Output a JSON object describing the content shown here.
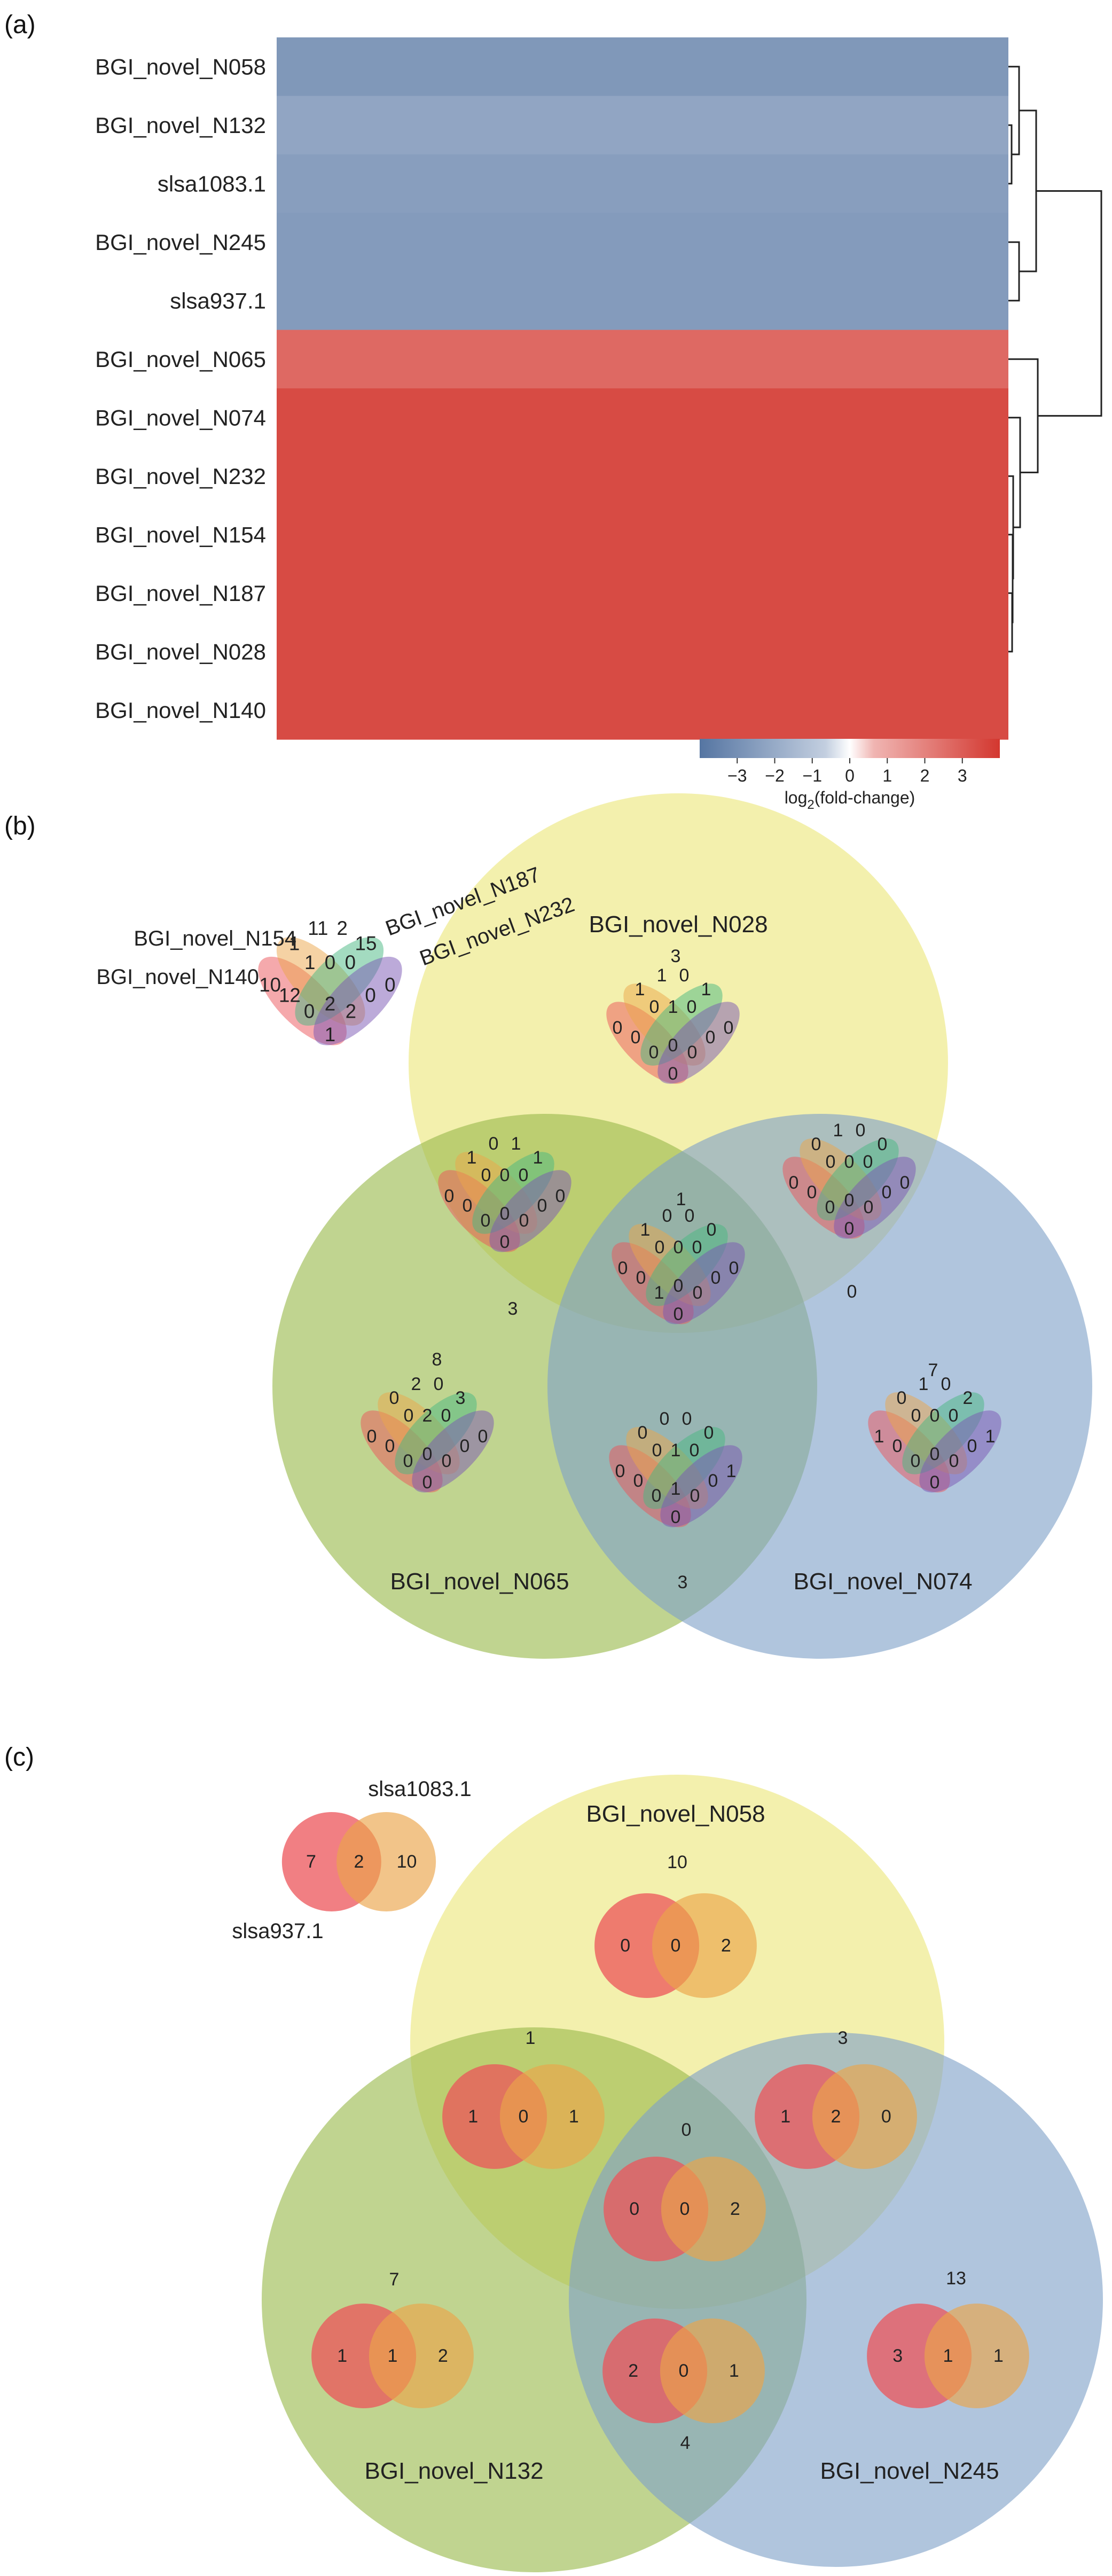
{
  "chart_data": [
    {
      "type": "heatmap",
      "panel_label": "(a)",
      "rows": [
        {
          "label": "BGI_novel_N058",
          "value": -3.0
        },
        {
          "label": "BGI_novel_N132",
          "value": -2.6
        },
        {
          "label": "slsa1083.1",
          "value": -2.8
        },
        {
          "label": "BGI_novel_N245",
          "value": -2.9
        },
        {
          "label": "slsa937.1",
          "value": -2.9
        },
        {
          "label": "BGI_novel_N065",
          "value": 3.0
        },
        {
          "label": "BGI_novel_N074",
          "value": 3.6
        },
        {
          "label": "BGI_novel_N232",
          "value": 3.6
        },
        {
          "label": "BGI_novel_N154",
          "value": 3.6
        },
        {
          "label": "BGI_novel_N187",
          "value": 3.6
        },
        {
          "label": "BGI_novel_N028",
          "value": 3.6
        },
        {
          "label": "BGI_novel_N140",
          "value": 3.6
        }
      ],
      "colorbar": {
        "range": [
          -4,
          4
        ],
        "ticks": [
          "−3",
          "−2",
          "−1",
          "0",
          "1",
          "2",
          "3"
        ],
        "tick_values": [
          -3,
          -2,
          -1,
          0,
          1,
          2,
          3
        ],
        "label_pre": "log",
        "label_sub": "2",
        "label_post": "(fold-change)"
      },
      "colors": {
        "negative": "#5575a2",
        "neutral": "#ffffff",
        "positive": "#d3372f",
        "tree": "#222222"
      }
    },
    {
      "type": "venn",
      "panel_label": "(b)",
      "big_sets": [
        "BGI_novel_N028",
        "BGI_novel_N065",
        "BGI_novel_N074"
      ],
      "inner_sets": [
        "BGI_novel_N154",
        "BGI_novel_N140",
        "BGI_novel_N187",
        "BGI_novel_N232"
      ],
      "legend_counts": [
        "10",
        "1",
        "11",
        "2",
        "15",
        "0",
        "12",
        "1",
        "0",
        "0",
        "0",
        "0",
        "2",
        "2",
        "1"
      ],
      "regions": [
        {
          "region": "N028 only",
          "total": "3",
          "counts": [
            "0",
            "1",
            "1",
            "0",
            "1",
            "0",
            "0",
            "0",
            "1",
            "0",
            "0",
            "0",
            "0",
            "0",
            "0"
          ]
        },
        {
          "region": "N028 & N065",
          "total": "3",
          "counts": [
            "0",
            "1",
            "0",
            "1",
            "1",
            "0",
            "0",
            "0",
            "0",
            "0",
            "0",
            "0",
            "0",
            "0",
            "0"
          ]
        },
        {
          "region": "N028 & N074",
          "total": "0",
          "counts": [
            "0",
            "0",
            "1",
            "0",
            "0",
            "0",
            "0",
            "0",
            "0",
            "0",
            "0",
            "0",
            "0",
            "0",
            "0"
          ]
        },
        {
          "region": "N028 & N065 & N074",
          "total": "1",
          "counts": [
            "0",
            "1",
            "0",
            "0",
            "0",
            "0",
            "0",
            "0",
            "0",
            "0",
            "0",
            "1",
            "0",
            "0",
            "0"
          ]
        },
        {
          "region": "N065 only",
          "total": "8",
          "counts": [
            "0",
            "0",
            "2",
            "0",
            "3",
            "0",
            "0",
            "0",
            "2",
            "0",
            "0",
            "0",
            "0",
            "0",
            "0"
          ]
        },
        {
          "region": "N065 & N074",
          "total": "3",
          "counts": [
            "0",
            "0",
            "0",
            "0",
            "0",
            "1",
            "0",
            "0",
            "1",
            "0",
            "0",
            "0",
            "1",
            "0",
            "0"
          ]
        },
        {
          "region": "N074 only",
          "total": "7",
          "counts": [
            "1",
            "0",
            "1",
            "0",
            "2",
            "1",
            "0",
            "0",
            "0",
            "0",
            "0",
            "0",
            "0",
            "0",
            "0"
          ]
        }
      ],
      "colors": {
        "yellow": "#ece67a",
        "green": "#9ab94c",
        "blue": "#7fa2c8",
        "red": "#ec5459",
        "orange": "#eba54a",
        "teal": "#48b882",
        "purple": "#7a56b4"
      }
    },
    {
      "type": "venn",
      "panel_label": "(c)",
      "big_sets": [
        "BGI_novel_N058",
        "BGI_novel_N132",
        "BGI_novel_N245"
      ],
      "inner_sets": [
        "slsa937.1",
        "slsa1083.1"
      ],
      "legend_counts": [
        "7",
        "2",
        "10"
      ],
      "regions": [
        {
          "region": "N058 only",
          "total": "10",
          "counts": [
            "0",
            "0",
            "2"
          ]
        },
        {
          "region": "N058 & N132",
          "total": "1",
          "counts": [
            "1",
            "0",
            "1"
          ]
        },
        {
          "region": "N058 & N245",
          "total": "3",
          "counts": [
            "1",
            "2",
            "0"
          ]
        },
        {
          "region": "N058 & N132 & N245",
          "total": "0",
          "counts": [
            "0",
            "0",
            "2"
          ]
        },
        {
          "region": "N132 only",
          "total": "7",
          "counts": [
            "1",
            "1",
            "2"
          ]
        },
        {
          "region": "N132 & N245",
          "total": "4",
          "counts": [
            "2",
            "0",
            "1"
          ]
        },
        {
          "region": "N245 only",
          "total": "13",
          "counts": [
            "3",
            "1",
            "1"
          ]
        }
      ],
      "colors": {
        "yellow": "#ece67a",
        "green": "#9ab94c",
        "blue": "#7fa2c8",
        "red": "#ec5459",
        "orange": "#eba54a"
      }
    }
  ]
}
